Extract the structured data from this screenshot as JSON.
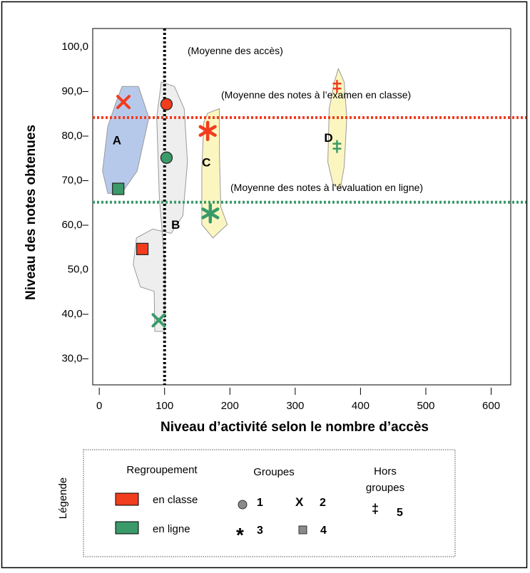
{
  "chart_data": {
    "type": "scatter",
    "xlabel": "Niveau d’activité selon le nombre d’accès",
    "ylabel": "Niveau des notes obtenues",
    "xlim": [
      -10,
      630
    ],
    "ylim": [
      24,
      104
    ],
    "x_ticks": [
      0,
      100,
      200,
      300,
      400,
      500,
      600
    ],
    "x_tick_labels": [
      "0",
      "100",
      "200",
      "300",
      "400",
      "500",
      "600"
    ],
    "y_ticks": [
      30,
      40,
      50,
      60,
      70,
      80,
      90,
      100
    ],
    "y_tick_labels": [
      "30,0–",
      "40,0–",
      "50,0",
      "60,0–",
      "70,0–",
      "80,0–",
      "90,0–",
      "100,0"
    ],
    "colors": {
      "en_classe": "#f23c1e",
      "en_ligne": "#3a9a6a",
      "mean_access": "#000000"
    },
    "reference_lines": [
      {
        "orientation": "vertical",
        "value": 100,
        "color": "#000000",
        "label": "(Moyenne des accès)"
      },
      {
        "orientation": "horizontal",
        "value": 84,
        "color": "#f23c1e",
        "label": "(Moyenne des notes à l’examen en classe)"
      },
      {
        "orientation": "horizontal",
        "value": 65,
        "color": "#3a9a6a",
        "label": "(Moyenne des notes à l’évaluation en ligne)"
      }
    ],
    "points": [
      {
        "x": 37,
        "y": 87.5,
        "marker": "x",
        "color": "#f23c1e"
      },
      {
        "x": 29,
        "y": 68,
        "marker": "square",
        "color": "#3a9a6a"
      },
      {
        "x": 103,
        "y": 87,
        "marker": "circle",
        "color": "#f23c1e"
      },
      {
        "x": 103,
        "y": 75,
        "marker": "circle",
        "color": "#3a9a6a"
      },
      {
        "x": 66,
        "y": 54.5,
        "marker": "square",
        "color": "#f23c1e"
      },
      {
        "x": 91,
        "y": 38.5,
        "marker": "x",
        "color": "#3a9a6a"
      },
      {
        "x": 166,
        "y": 81,
        "marker": "asterisk",
        "color": "#f23c1e"
      },
      {
        "x": 170,
        "y": 62.5,
        "marker": "asterisk",
        "color": "#3a9a6a"
      },
      {
        "x": 364,
        "y": 91,
        "marker": "dagger",
        "color": "#f23c1e"
      },
      {
        "x": 364,
        "y": 77.5,
        "marker": "dagger",
        "color": "#3a9a6a"
      }
    ],
    "clusters": [
      {
        "label": "A",
        "fill": "#b7c9ea",
        "label_at": [
          27,
          79
        ],
        "outline": [
          [
            35,
            91
          ],
          [
            60,
            91
          ],
          [
            76,
            84
          ],
          [
            58,
            72
          ],
          [
            34,
            67
          ],
          [
            13,
            67
          ],
          [
            5,
            72
          ],
          [
            13,
            82
          ],
          [
            27,
            88
          ]
        ]
      },
      {
        "label": "B",
        "fill": "#eeeeee",
        "label_at": [
          117,
          60
        ],
        "outline": [
          [
            95,
            92
          ],
          [
            115,
            91
          ],
          [
            130,
            86
          ],
          [
            135,
            74
          ],
          [
            128,
            62
          ],
          [
            110,
            58
          ],
          [
            82,
            59
          ],
          [
            57,
            57
          ],
          [
            52,
            51
          ],
          [
            63,
            46
          ],
          [
            84,
            45
          ],
          [
            85,
            36
          ],
          [
            100,
            36
          ],
          [
            101,
            50
          ],
          [
            92,
            66
          ],
          [
            88,
            84
          ]
        ]
      },
      {
        "label": "C",
        "fill": "#fbf6c0",
        "label_at": [
          164,
          74
        ],
        "outline": [
          [
            166,
            85
          ],
          [
            184,
            86
          ],
          [
            184,
            76
          ],
          [
            186,
            64
          ],
          [
            196,
            60
          ],
          [
            174,
            57
          ],
          [
            157,
            60
          ],
          [
            157,
            72
          ],
          [
            160,
            83
          ]
        ]
      },
      {
        "label": "D",
        "fill": "#fbf6c0",
        "label_at": [
          351,
          79.5
        ],
        "outline": [
          [
            366,
            95
          ],
          [
            375,
            92
          ],
          [
            379,
            84
          ],
          [
            375,
            73
          ],
          [
            369,
            68
          ],
          [
            358,
            69
          ],
          [
            350,
            74
          ],
          [
            352,
            86
          ],
          [
            360,
            92
          ]
        ]
      }
    ]
  },
  "legend": {
    "title": "Légende",
    "regroupement_heading": "Regroupement",
    "regroupement_items": [
      {
        "label": "en classe",
        "color": "#f23c1e"
      },
      {
        "label": "en ligne",
        "color": "#3a9a6a"
      }
    ],
    "groupes_heading": "Groupes",
    "groupes_items": [
      {
        "symbol": "circle",
        "number": "1"
      },
      {
        "symbol": "X",
        "number": "2"
      },
      {
        "symbol": "*",
        "number": "3"
      },
      {
        "symbol": "square",
        "number": "4"
      }
    ],
    "hors_groupes_heading_line1": "Hors",
    "hors_groupes_heading_line2": "groupes",
    "hors_groupes_symbol": "‡",
    "hors_groupes_number": "5"
  }
}
